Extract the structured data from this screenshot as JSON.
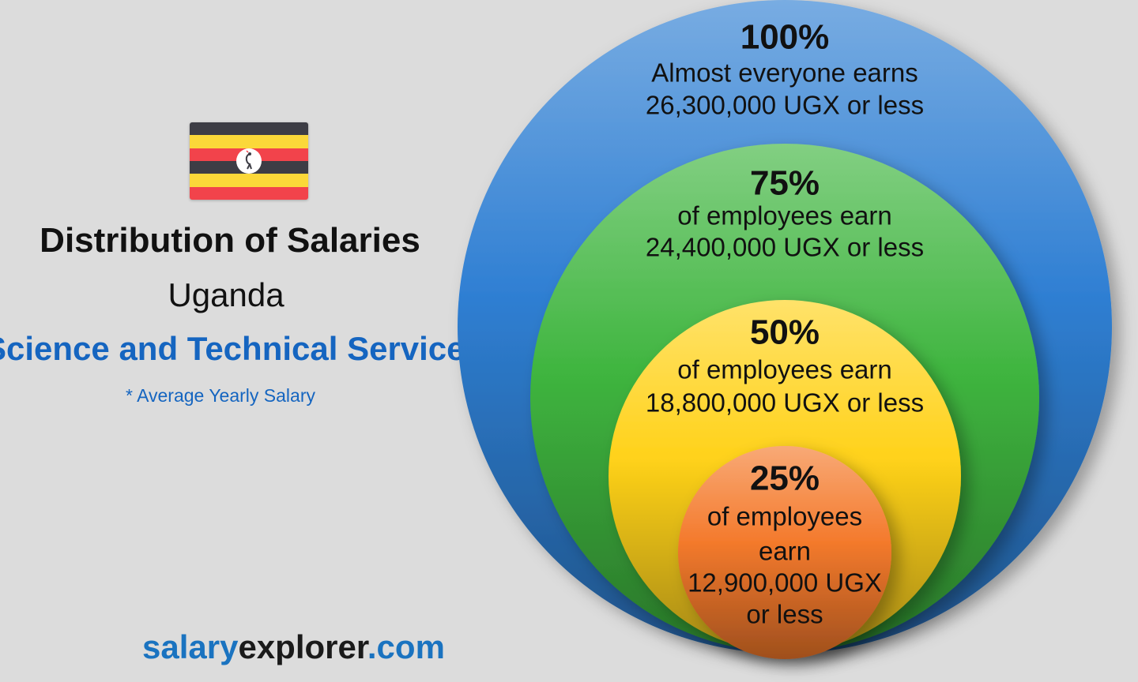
{
  "colors": {
    "title": "#111111",
    "accent_blue": "#1565c0",
    "brand_blue": "#1a73c0",
    "brand_dark": "#1a1a1a",
    "flag_black": "#3d3d45",
    "flag_yellow": "#fbd839",
    "flag_red": "#f2434b"
  },
  "flag": {
    "country": "Uganda",
    "stripes": [
      "#3d3d45",
      "#fbd839",
      "#f2434b",
      "#3d3d45",
      "#fbd839",
      "#f2434b"
    ]
  },
  "header": {
    "title": "Distribution of Salaries",
    "country": "Uganda",
    "sector": "Science and Technical Services",
    "note": "* Average Yearly Salary"
  },
  "brand": {
    "part1": "salary",
    "part2": "explorer",
    "part3": ".com"
  },
  "chart_data": {
    "type": "nested-circles",
    "unit": "UGX",
    "levels": [
      {
        "percent": "100%",
        "description": "Almost everyone earns",
        "value": 26300000,
        "amount_text": "26,300,000 UGX or less",
        "color": "#2f7fd3"
      },
      {
        "percent": "75%",
        "description": "of employees earn",
        "value": 24400000,
        "amount_text": "24,400,000 UGX or less",
        "color": "#3fb53f"
      },
      {
        "percent": "50%",
        "description": "of employees earn",
        "value": 18800000,
        "amount_text": "18,800,000 UGX or less",
        "color": "#ffd21a"
      },
      {
        "percent": "25%",
        "description": "of employees earn",
        "value": 12900000,
        "amount_text": "12,900,000 UGX or less",
        "color": "#f47a2c"
      }
    ]
  }
}
